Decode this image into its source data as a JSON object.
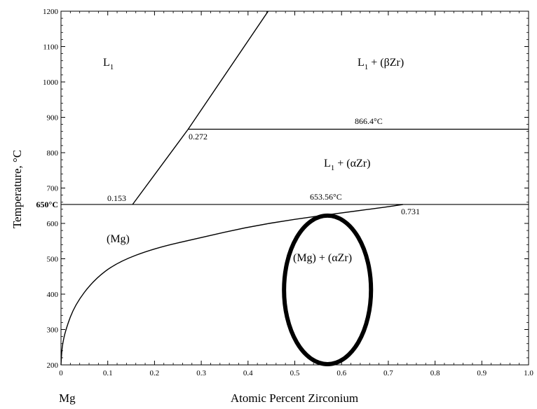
{
  "chart_data": {
    "type": "phase-diagram",
    "xlabel": "Atomic Percent Zirconium",
    "ylabel": "Temperature, °C",
    "left_component": "Mg",
    "xlim": [
      0,
      1.0
    ],
    "ylim": [
      200,
      1200
    ],
    "x_ticks": [
      "0",
      "0.1",
      "0.2",
      "0.3",
      "0.4",
      "0.5",
      "0.6",
      "0.7",
      "0.8",
      "0.9",
      "1.0"
    ],
    "y_ticks": [
      "200",
      "300",
      "400",
      "500",
      "600",
      "700",
      "800",
      "900",
      "1000",
      "1100",
      "1200"
    ],
    "special_y_tick": "650°C",
    "liquidus": [
      [
        0.153,
        653.56
      ],
      [
        0.272,
        866.4
      ],
      [
        0.443,
        1200
      ]
    ],
    "solvus_curve": [
      [
        0,
        200
      ],
      [
        0.002,
        250
      ],
      [
        0.01,
        300
      ],
      [
        0.03,
        370
      ],
      [
        0.07,
        440
      ],
      [
        0.12,
        490
      ],
      [
        0.2,
        530
      ],
      [
        0.3,
        560
      ],
      [
        0.4,
        590
      ],
      [
        0.5,
        612
      ],
      [
        0.6,
        630
      ],
      [
        0.7,
        647
      ],
      [
        0.731,
        653.56
      ]
    ],
    "peritectic_high": {
      "temperature": 866.4,
      "x_start": 0.272,
      "x_end": 1.0
    },
    "peritectic_low": {
      "temperature": 653.56,
      "x_start": 0,
      "x_end": 1.0
    },
    "regions": {
      "l1": "L",
      "l1_beta": "L",
      "l1_alpha": "L",
      "mg": "(Mg)",
      "mg_alpha": "(Mg) + (αZr)"
    },
    "region_suffix_beta": " + (βZr)",
    "region_suffix_alpha": " + (αZr)",
    "subscript": "1",
    "annotations": {
      "t_high": "866.4°C",
      "t_low": "653.56°C",
      "c_0272": "0.272",
      "c_0153": "0.153",
      "c_0731": "0.731"
    },
    "highlight": {
      "shape": "ellipse",
      "center": [
        0.57,
        412
      ],
      "rx": 0.093,
      "ry": 210
    }
  }
}
